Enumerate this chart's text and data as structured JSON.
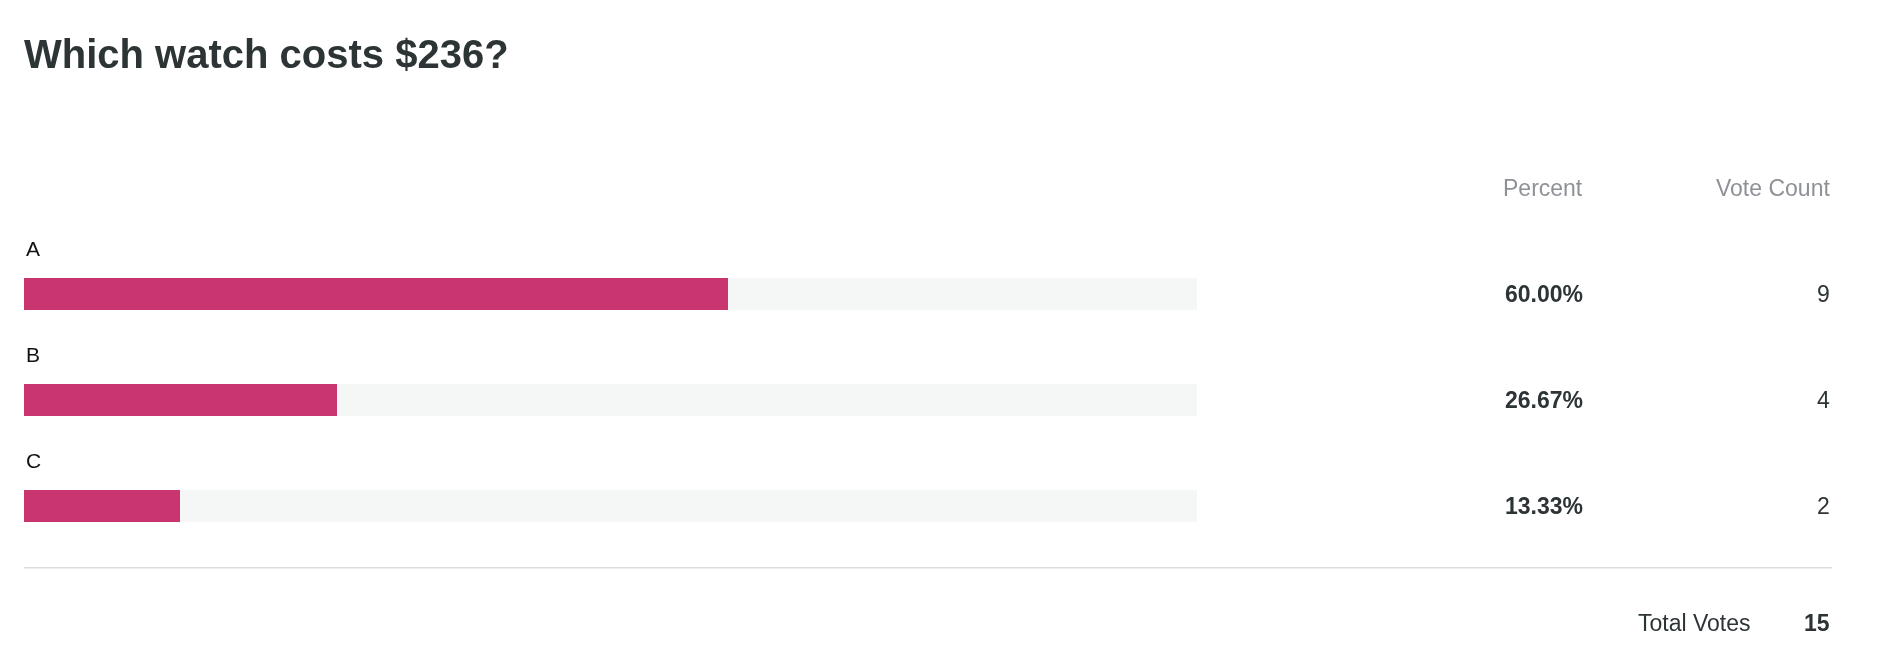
{
  "chart_data": {
    "type": "bar",
    "orientation": "horizontal",
    "stacked": true,
    "title": "Which watch costs $236?",
    "categories": [
      "A",
      "B",
      "C"
    ],
    "series": [
      {
        "color": "#c9366f",
        "values": [
          60,
          26.67,
          13.33
        ],
        "value_labels": [
          "60.00%",
          "26.67%",
          "13.33%"
        ]
      },
      {
        "color": "#f5f6f6",
        "values": [
          40,
          73.33,
          86.67
        ]
      }
    ],
    "xlim": [
      0,
      100
    ],
    "tick_labels": false,
    "annotations": [
      "Percent",
      "Vote Count",
      "9",
      "4",
      "2",
      "Total Votes",
      "15"
    ]
  }
}
